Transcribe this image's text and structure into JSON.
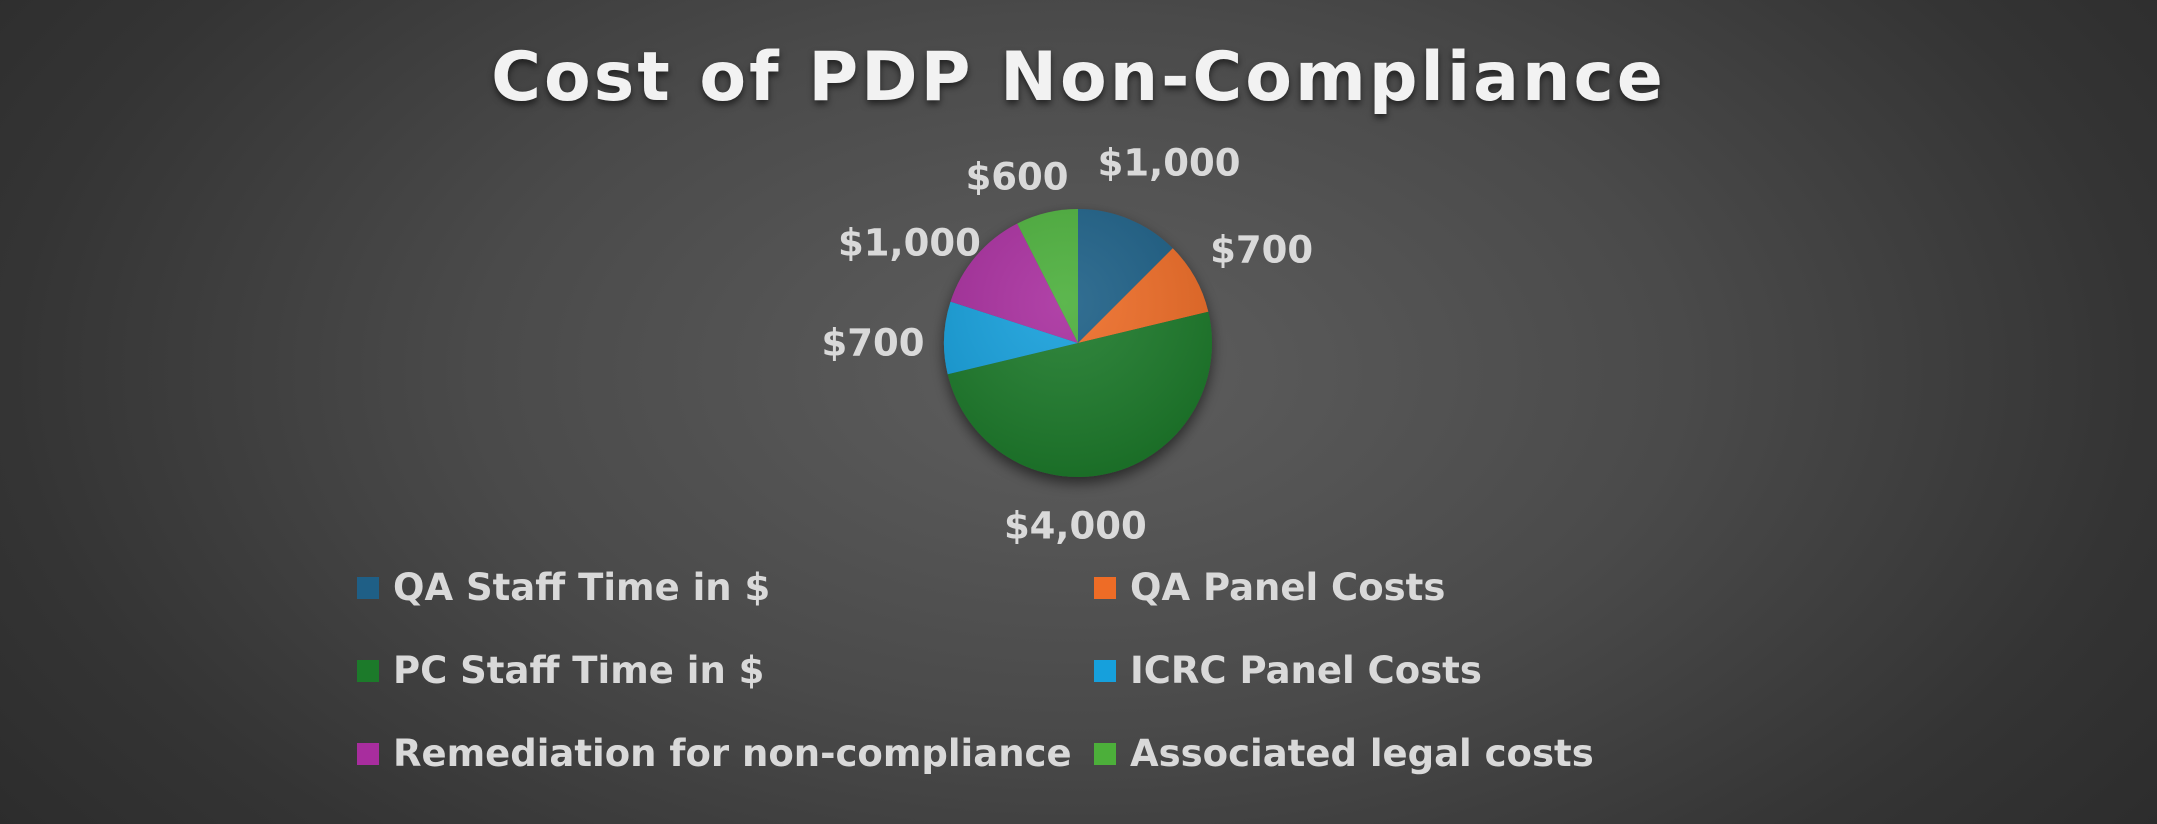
{
  "chart_data": {
    "type": "pie",
    "title": "Cost of PDP Non-Compliance",
    "categories": [
      "QA Staff Time in $",
      "QA Panel Costs",
      "PC Staff Time in $",
      "ICRC Panel Costs",
      "Remediation for non-compliance",
      "Associated legal costs"
    ],
    "values": [
      1000,
      700,
      4000,
      700,
      1000,
      600
    ],
    "data_labels": [
      "$1,000",
      "$700",
      "$4,000",
      "$700",
      "$1,000",
      "$600"
    ],
    "colors": [
      "#1f5f86",
      "#ee6c26",
      "#1c7a2a",
      "#16a0dc",
      "#a82d9e",
      "#4caf3a"
    ],
    "legend_position": "bottom",
    "start_angle": "12 o'clock, clockwise"
  }
}
